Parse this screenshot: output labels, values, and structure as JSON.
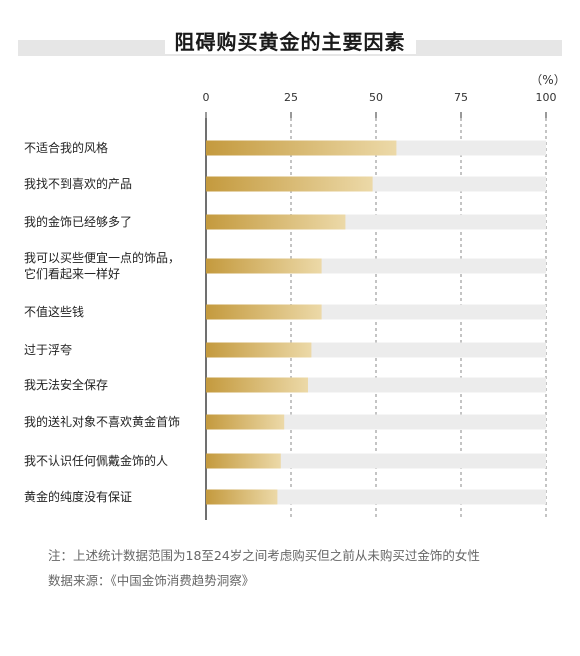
{
  "title": "阻碍购买黄金的主要因素",
  "unit": "（%）",
  "chart_data": {
    "type": "bar",
    "orientation": "horizontal",
    "xlim": [
      0,
      100
    ],
    "xticks": [
      0,
      25,
      50,
      75,
      100
    ],
    "categories": [
      "不适合我的风格",
      "我找不到喜欢的产品",
      "我的金饰已经够多了",
      "我可以买些便宜一点的饰品，\n它们看起来一样好",
      "不值这些钱",
      "过于浮夸",
      "我无法安全保存",
      "我的送礼对象不喜欢黄金首饰",
      "我不认识任何佩戴金饰的人",
      "黄金的纯度没有保证"
    ],
    "values": [
      56,
      49,
      41,
      34,
      34,
      31,
      30,
      23,
      22,
      21
    ],
    "bar_color": "#c9a24e",
    "track_color": "#ececec"
  },
  "notes": {
    "line1": "注：上述统计数据范围为18至24岁之间考虑购买但之前从未购买过金饰的女性",
    "line2": "数据来源：《中国金饰消费趋势洞察》"
  }
}
